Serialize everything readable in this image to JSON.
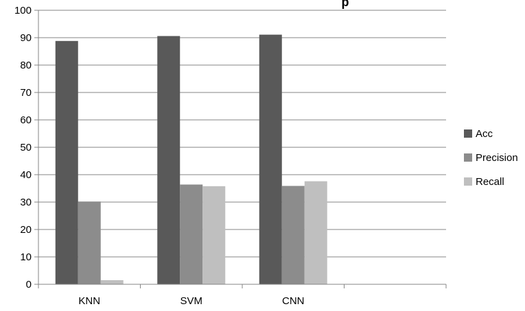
{
  "chart_data": {
    "type": "bar",
    "title_fragment": "p",
    "categories": [
      "KNN",
      "SVM",
      "CNN",
      ""
    ],
    "series": [
      {
        "name": "Acc",
        "color": "#595959",
        "values": [
          88.8,
          90.6,
          91.1,
          null
        ]
      },
      {
        "name": "Precision",
        "color": "#8c8c8c",
        "values": [
          30.2,
          36.4,
          35.9,
          null
        ]
      },
      {
        "name": "Recall",
        "color": "#bfbfbf",
        "values": [
          1.5,
          35.8,
          37.6,
          null
        ]
      }
    ],
    "ylim": [
      0,
      100
    ],
    "yticks": [
      0,
      10,
      20,
      30,
      40,
      50,
      60,
      70,
      80,
      90,
      100
    ],
    "grid": true,
    "legend_position": "right"
  }
}
